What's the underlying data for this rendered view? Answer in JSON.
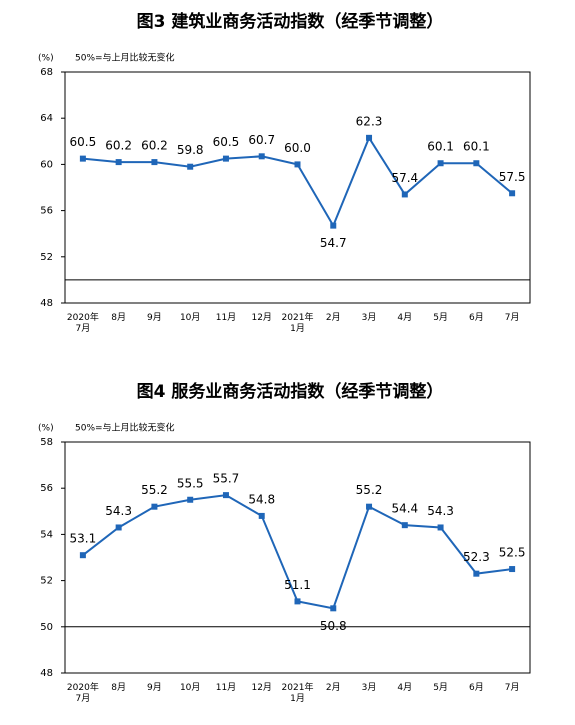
{
  "chart_data": [
    {
      "type": "line",
      "title": "图3  建筑业商务活动指数（经季节调整）",
      "unit_label": "(%)",
      "note": "50%=与上月比较无变化",
      "categories": [
        "2020年\n7月",
        "8月",
        "9月",
        "10月",
        "11月",
        "12月",
        "2021年\n1月",
        "2月",
        "3月",
        "4月",
        "5月",
        "6月",
        "7月"
      ],
      "series": [
        {
          "color": "#1f66b8",
          "values": [
            60.5,
            60.2,
            60.2,
            59.8,
            60.5,
            60.7,
            60.0,
            54.7,
            62.3,
            57.4,
            60.1,
            60.1,
            57.5
          ],
          "value_labels": [
            "60.5",
            "60.2",
            "60.2",
            "59.8",
            "60.5",
            "60.7",
            "60.0",
            "54.7",
            "62.3",
            "57.4",
            "60.1",
            "60.1",
            "57.5"
          ]
        }
      ],
      "ylim": [
        48,
        68
      ],
      "yticks": [
        48,
        52,
        56,
        60,
        64,
        68
      ],
      "reference_line": 50
    },
    {
      "type": "line",
      "title": "图4  服务业商务活动指数（经季节调整）",
      "unit_label": "(%)",
      "note": "50%=与上月比较无变化",
      "categories": [
        "2020年\n7月",
        "8月",
        "9月",
        "10月",
        "11月",
        "12月",
        "2021年\n1月",
        "2月",
        "3月",
        "4月",
        "5月",
        "6月",
        "7月"
      ],
      "series": [
        {
          "color": "#1f66b8",
          "values": [
            53.1,
            54.3,
            55.2,
            55.5,
            55.7,
            54.8,
            51.1,
            50.8,
            55.2,
            54.4,
            54.3,
            52.3,
            52.5
          ],
          "value_labels": [
            "53.1",
            "54.3",
            "55.2",
            "55.5",
            "55.7",
            "54.8",
            "51.1",
            "50.8",
            "55.2",
            "54.4",
            "54.3",
            "52.3",
            "52.5"
          ]
        }
      ],
      "ylim": [
        48,
        58
      ],
      "yticks": [
        48,
        50,
        52,
        54,
        56,
        58
      ],
      "reference_line": 50
    }
  ]
}
